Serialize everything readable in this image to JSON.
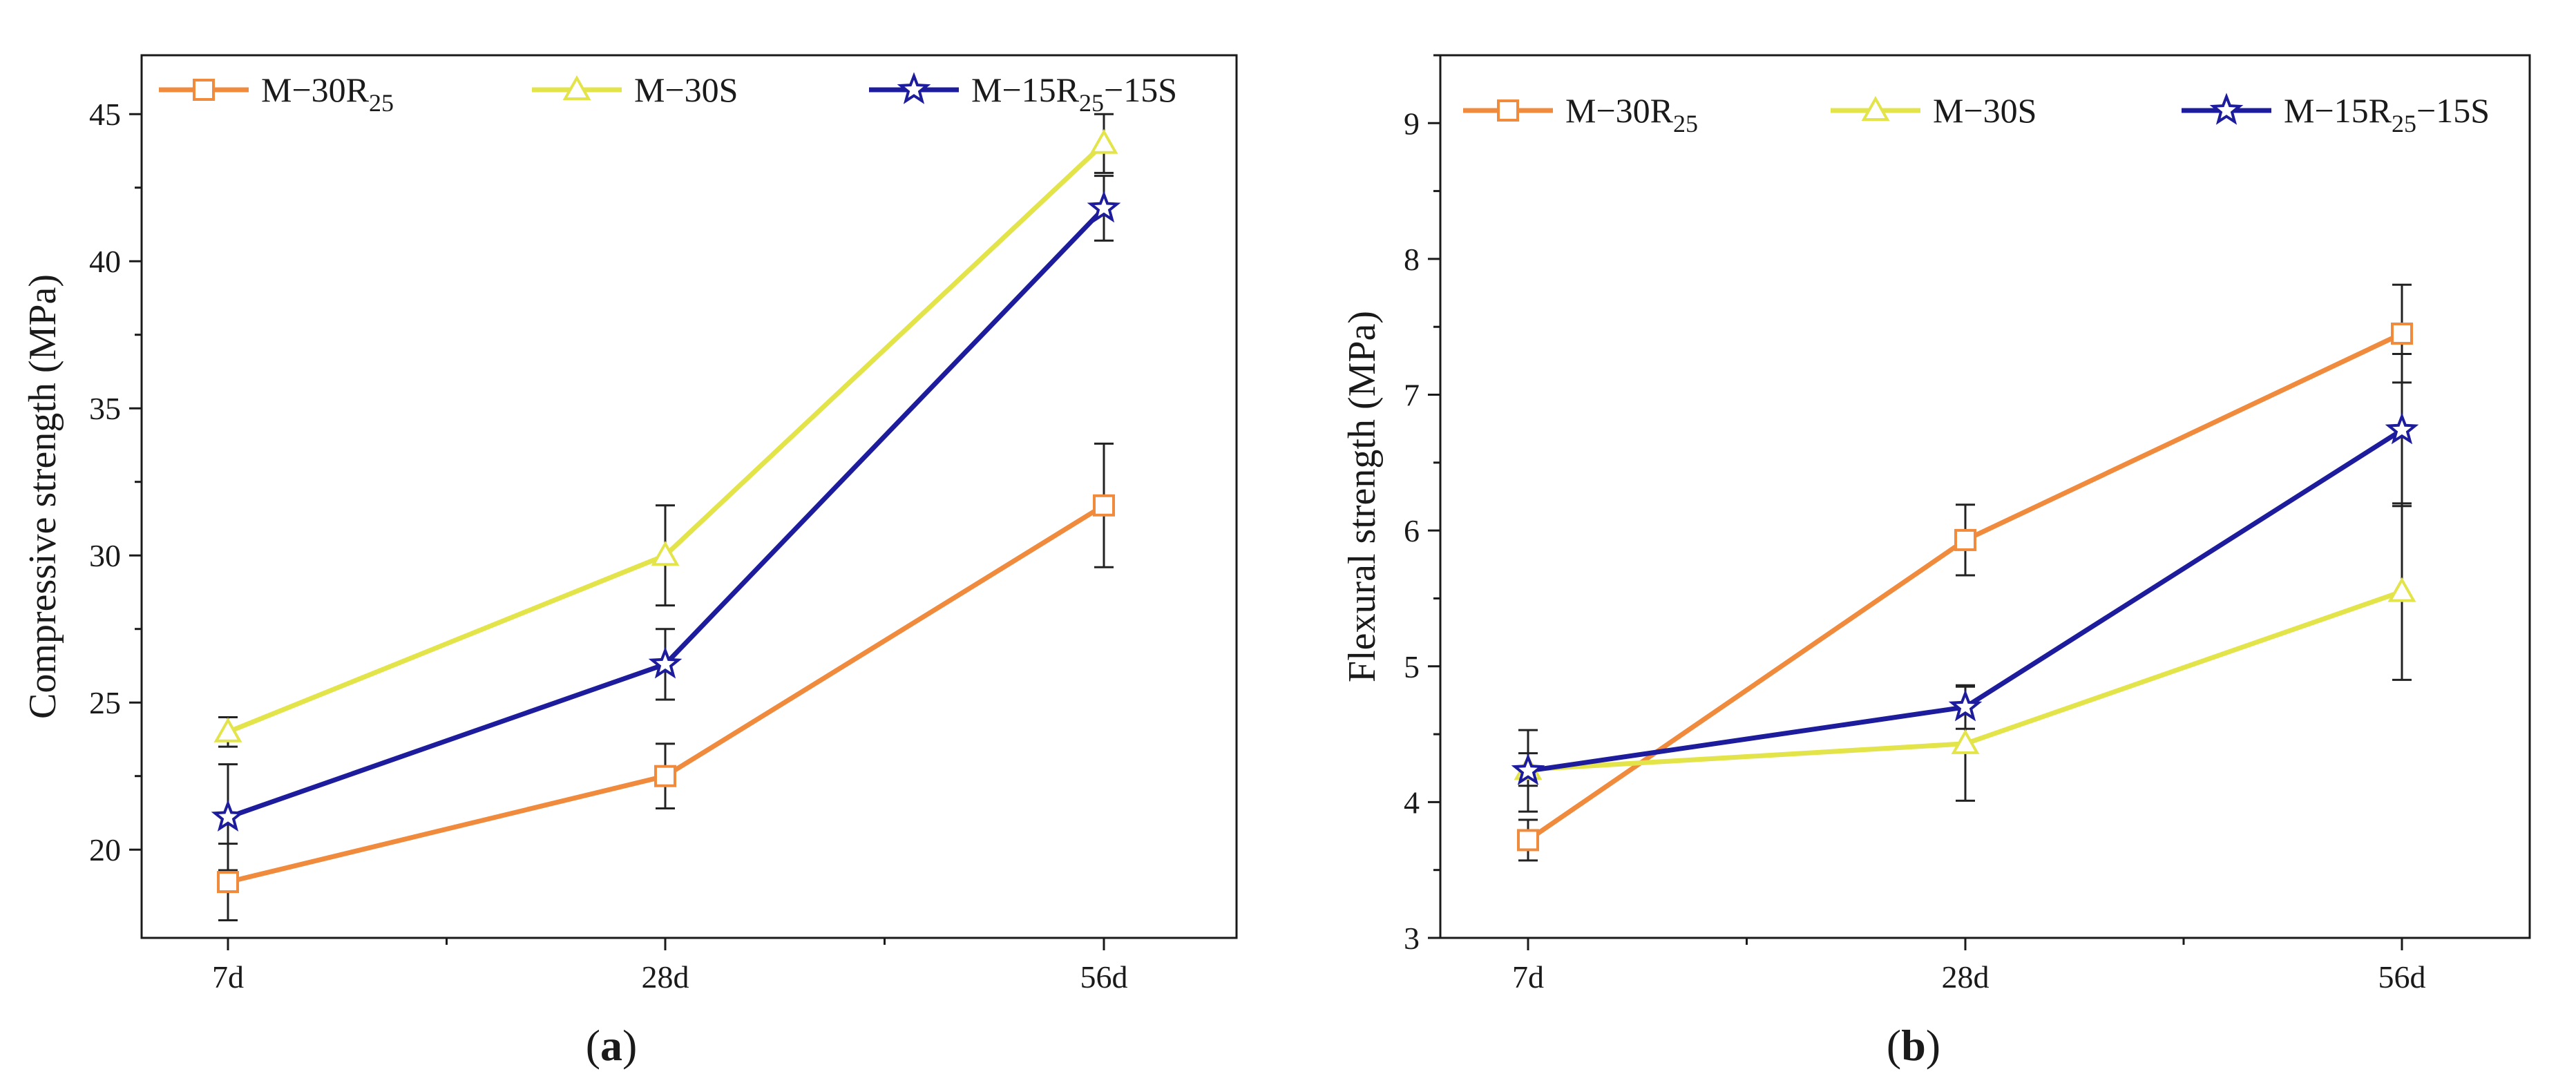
{
  "figure": {
    "panels": [
      {
        "open": "(",
        "letter": "a",
        "close": ")"
      },
      {
        "open": "(",
        "letter": "b",
        "close": ")"
      }
    ]
  },
  "colors": {
    "orange": "#f08a3c",
    "yellow": "#e3e34a",
    "navy": "#1c1c9c",
    "axis": "#1a1a1a",
    "error": "#222222"
  },
  "chart_data": [
    {
      "type": "line",
      "panel": "(a)",
      "categories": [
        "7d",
        "28d",
        "56d"
      ],
      "ylabel": "Compressive strength (MPa)",
      "xlabel": "",
      "ylim": [
        17,
        47
      ],
      "yticks": [
        20,
        25,
        30,
        35,
        40,
        45
      ],
      "legend_position": "top",
      "series": [
        {
          "name": "M−30R",
          "sub": "25",
          "suffix": "",
          "marker": "square",
          "color": "orange",
          "values": [
            18.9,
            22.5,
            31.7
          ],
          "errors": [
            1.3,
            1.1,
            2.1
          ]
        },
        {
          "name": "M−30S",
          "sub": "",
          "suffix": "",
          "marker": "triangle",
          "color": "yellow",
          "values": [
            24.0,
            30.0,
            44.0
          ],
          "errors": [
            0.5,
            1.7,
            1.0
          ]
        },
        {
          "name": "M−15R",
          "sub": "25",
          "suffix": "−15S",
          "marker": "star",
          "color": "navy",
          "values": [
            21.1,
            26.3,
            41.8
          ],
          "errors": [
            1.8,
            1.2,
            1.1
          ]
        }
      ]
    },
    {
      "type": "line",
      "panel": "(b)",
      "categories": [
        "7d",
        "28d",
        "56d"
      ],
      "ylabel": "Flexural strength (MPa)",
      "xlabel": "",
      "ylim": [
        3,
        9.5
      ],
      "yticks": [
        3,
        4,
        5,
        6,
        7,
        8,
        9
      ],
      "legend_position": "top",
      "series": [
        {
          "name": "M−30R",
          "sub": "25",
          "suffix": "",
          "marker": "square",
          "color": "orange",
          "values": [
            3.72,
            5.93,
            7.45
          ],
          "errors": [
            0.15,
            0.26,
            0.36
          ]
        },
        {
          "name": "M−30S",
          "sub": "",
          "suffix": "",
          "marker": "triangle",
          "color": "yellow",
          "values": [
            4.24,
            4.43,
            5.55
          ],
          "errors": [
            0.12,
            0.42,
            0.65
          ]
        },
        {
          "name": "M−15R",
          "sub": "25",
          "suffix": "−15S",
          "marker": "star",
          "color": "navy",
          "values": [
            4.23,
            4.7,
            6.74
          ],
          "errors": [
            0.3,
            0.16,
            0.56
          ]
        }
      ]
    }
  ]
}
